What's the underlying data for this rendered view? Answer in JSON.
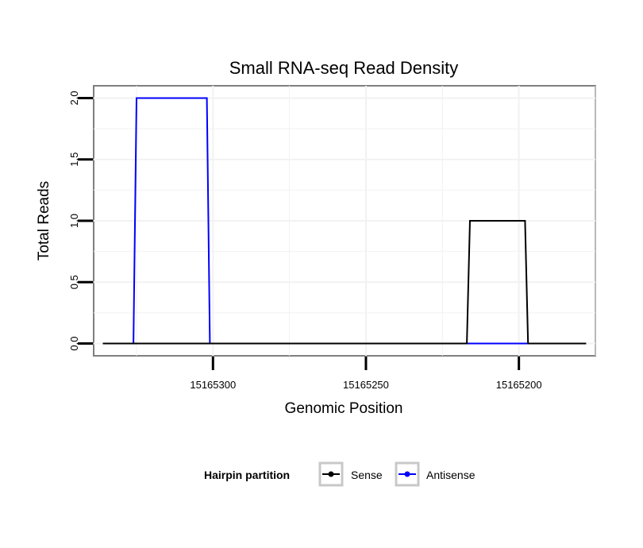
{
  "chart_data": {
    "type": "line",
    "title": "Small RNA-seq Read Density",
    "xlabel": "Genomic Position",
    "ylabel": "Total Reads",
    "x_reversed": true,
    "xlim": [
      15165339,
      15165175
    ],
    "ylim": [
      -0.1,
      2.1
    ],
    "xticks": [
      15165300,
      15165250,
      15165200
    ],
    "xtick_labels": [
      "15165300",
      "15165250",
      "15165200"
    ],
    "yticks": [
      0.0,
      0.5,
      1.0,
      1.5,
      2.0
    ],
    "ytick_labels": [
      "0.0",
      "0.5",
      "1.0",
      "1.5",
      "2.0"
    ],
    "grid": true,
    "legend": {
      "title": "Hairpin partition",
      "position": "bottom",
      "entries": [
        "Sense",
        "Antisense"
      ]
    },
    "series": [
      {
        "name": "Sense",
        "color": "#000000",
        "x": [
          15165336,
          15165217,
          15165216,
          15165198,
          15165197,
          15165178
        ],
        "y": [
          0,
          0,
          1,
          1,
          0,
          0
        ]
      },
      {
        "name": "Antisense",
        "color": "#0000ff",
        "x": [
          15165336,
          15165326,
          15165325,
          15165302,
          15165301,
          15165197
        ],
        "y": [
          0,
          0,
          2,
          2,
          0,
          0
        ]
      }
    ]
  }
}
